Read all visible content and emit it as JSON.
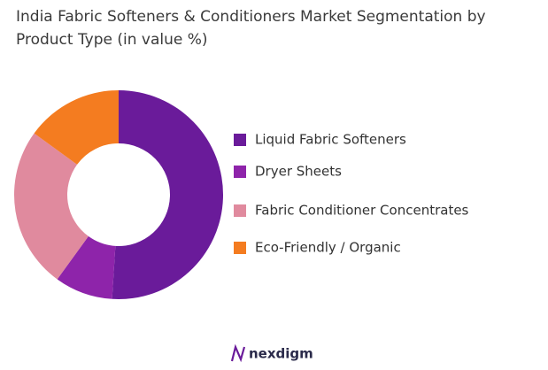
{
  "chart_data": {
    "type": "donut",
    "title": "India Fabric Softeners & Conditioners Market Segmentation by Product Type  (in value %)",
    "categories": [
      "Liquid Fabric Softeners",
      "Dryer Sheets",
      "Fabric Conditioner Concentrates",
      "Eco-Friendly / Organic"
    ],
    "values": [
      51,
      9,
      25,
      15
    ],
    "colors": [
      "#6a1b9a",
      "#8e24aa",
      "#e08a9e",
      "#f47c20"
    ],
    "legend": "right"
  },
  "brand": "nexdigm"
}
